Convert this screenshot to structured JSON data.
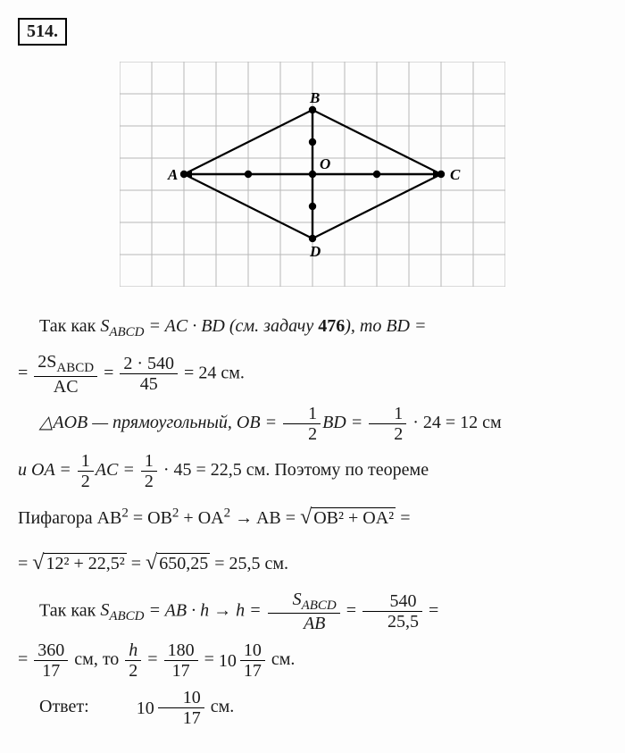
{
  "problem": {
    "number": "514."
  },
  "diagram": {
    "type": "geometry",
    "grid": {
      "cols": 12,
      "rows": 7,
      "cell": 36,
      "stroke": "#b8b8b8",
      "stroke_width": 1
    },
    "points": {
      "A": {
        "x": 2,
        "y": 3.5,
        "label_dx": -18,
        "label_dy": 6
      },
      "B": {
        "x": 6,
        "y": 1.5,
        "label_dx": -3,
        "label_dy": -8
      },
      "C": {
        "x": 10,
        "y": 3.5,
        "label_dx": 10,
        "label_dy": 6
      },
      "D": {
        "x": 6,
        "y": 5.5,
        "label_dx": -3,
        "label_dy": 20
      },
      "O": {
        "x": 6,
        "y": 3.5,
        "label_dx": 8,
        "label_dy": -6
      }
    },
    "rhombus_stroke": "#000000",
    "rhombus_stroke_width": 2.2,
    "diagonal_stroke": "#000000",
    "diagonal_stroke_width": 2.4,
    "dot_fill": "#000000",
    "dot_r": 4.2,
    "dotted_points": [
      {
        "x": 4,
        "y": 3.5
      },
      {
        "x": 6,
        "y": 3.5
      },
      {
        "x": 8,
        "y": 3.5
      },
      {
        "x": 6,
        "y": 4.5
      },
      {
        "x": 6,
        "y": 2.5
      }
    ],
    "label_font_size": 17,
    "label_style": "italic bold"
  },
  "text": {
    "p1a": "Так как ",
    "s_abcd": "S",
    "abcd": "ABCD",
    "eq1": " = AC · BD (см. задачу ",
    "ref": "476",
    "p1b": "), то BD =",
    "frac1_num": "2S",
    "frac1_den": "AC",
    "frac2_num": "2 · 540",
    "frac2_den": "45",
    "res1": " = 24 см.",
    "p2a": "△AOB — прямоугольный, OB = ",
    "half_num": "1",
    "half_den": "2",
    "p2b": "BD = ",
    "p2c": " · 24 = 12 см",
    "p3a": "и  OA = ",
    "p3b": "AC = ",
    "p3c": " · 45 = 22,5 см. Поэтому по теореме",
    "p4a": "Пифагора  AB",
    "sq": "2",
    "p4b": " = OB",
    "p4c": " + OA",
    "p4d": " → AB = ",
    "sqrt1": "OB² + OA²",
    "p4e": " =",
    "p5a": "= ",
    "sqrt2": "12² + 22,5²",
    "p5b": " = ",
    "sqrt3": "650,25",
    "p5c": " = 25,5 см.",
    "p6a": "Так как ",
    "p6b": " = AB · h → h = ",
    "frac3_num": "S",
    "frac3_den": "AB",
    "frac4_num": "540",
    "frac4_den": "25,5",
    "p6c": " =",
    "p7a": "= ",
    "frac5_num": "360",
    "frac5_den": "17",
    "p7b": " см, то ",
    "frac6_num": "h",
    "frac6_den": "2",
    "p7c": " = ",
    "frac7_num": "180",
    "frac7_den": "17",
    "p7d": " = ",
    "mix1_whole": "10",
    "mix1_num": "10",
    "mix1_den": "17",
    "p7e": " см.",
    "answer_label": "Ответ: ",
    "ans_whole": "10",
    "ans_num": "10",
    "ans_den": "17",
    "ans_unit": " см."
  }
}
